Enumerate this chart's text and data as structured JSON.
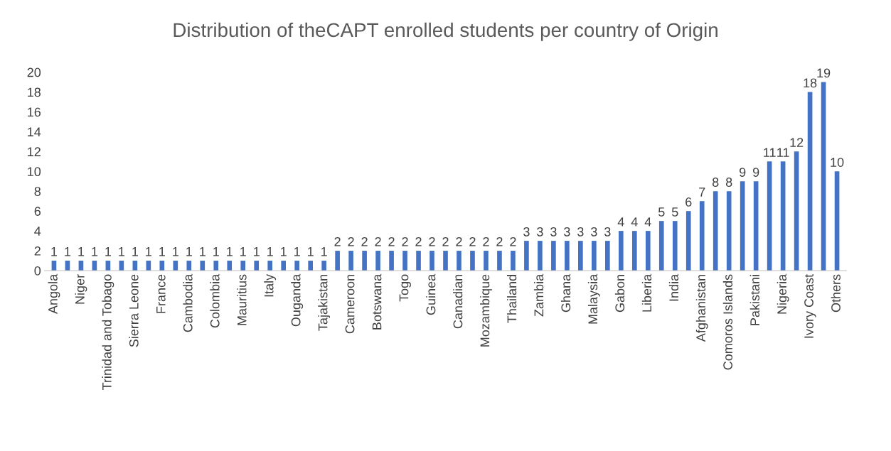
{
  "chart_data": {
    "type": "bar",
    "title": "Distribution of theCAPT enrolled students per country of Origin",
    "categories": [
      "Angola",
      null,
      "Niger",
      null,
      "Trinidad and Tobago",
      null,
      "Sierra Leone",
      null,
      "France",
      null,
      "Cambodia",
      null,
      "Colombia",
      null,
      "Mauritius",
      null,
      "Italy",
      null,
      "Ouganda",
      null,
      "Tajakistan",
      null,
      "Cameroon",
      null,
      "Botswana",
      null,
      "Togo",
      null,
      "Guinea",
      null,
      "Canadian",
      null,
      "Mozambique",
      null,
      "Thailand",
      null,
      "Zambia",
      null,
      "Ghana",
      null,
      "Malaysia",
      null,
      "Gabon",
      null,
      "Liberia",
      null,
      "India",
      null,
      "Afghanistan",
      null,
      "Comoros Islands",
      null,
      "Pakistani",
      null,
      "Nigeria",
      null,
      "Ivory Coast",
      null,
      "Others"
    ],
    "values": [
      1,
      1,
      1,
      1,
      1,
      1,
      1,
      1,
      1,
      1,
      1,
      1,
      1,
      1,
      1,
      1,
      1,
      1,
      1,
      1,
      1,
      2,
      2,
      2,
      2,
      2,
      2,
      2,
      2,
      2,
      2,
      2,
      2,
      2,
      2,
      3,
      3,
      3,
      3,
      3,
      3,
      3,
      4,
      4,
      4,
      5,
      5,
      6,
      7,
      8,
      8,
      9,
      9,
      11,
      11,
      12,
      18,
      19,
      10
    ],
    "color": "#4472c4",
    "ylim": [
      0,
      20
    ],
    "yticks": [
      0,
      2,
      4,
      6,
      8,
      10,
      12,
      14,
      16,
      18,
      20
    ],
    "grid": false,
    "data_labels": true
  }
}
